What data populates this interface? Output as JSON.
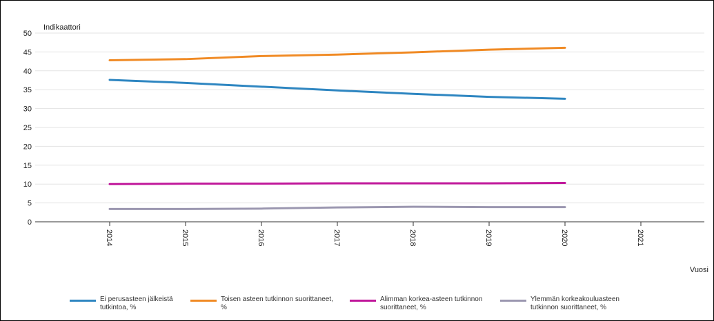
{
  "chart_data": {
    "type": "line",
    "ylabel": "Indikaattori",
    "xlabel": "Vuosi",
    "ylim": [
      0,
      50
    ],
    "y_ticks": [
      "0",
      "5",
      "10",
      "15",
      "20",
      "25",
      "30",
      "35",
      "40",
      "45",
      "50"
    ],
    "x_categories": [
      "2014",
      "2015",
      "2016",
      "2017",
      "2018",
      "2019",
      "2020",
      "2021"
    ],
    "grid": true,
    "legend_position": "bottom",
    "series": [
      {
        "name": "Ei perusasteen jälkeistä\ntutkintoa, %",
        "color": "#2e86c1",
        "values": [
          37.6,
          36.8,
          35.8,
          34.8,
          33.9,
          33.1,
          32.6,
          null
        ]
      },
      {
        "name": "Toisen asteen tutkinnon suorittaneet,\n%",
        "color": "#f08a24",
        "values": [
          42.8,
          43.1,
          43.9,
          44.3,
          44.9,
          45.6,
          46.1,
          null
        ]
      },
      {
        "name": "Alimman korkea-asteen tutkinnon\nsuorittaneet, %",
        "color": "#c0169a",
        "values": [
          10.0,
          10.1,
          10.1,
          10.2,
          10.2,
          10.2,
          10.3,
          null
        ]
      },
      {
        "name": "Ylemmän korkeakouluasteen\ntutkinnon suorittaneet, %",
        "color": "#9b97b0",
        "values": [
          3.4,
          3.4,
          3.5,
          3.8,
          4.0,
          3.9,
          3.9,
          null
        ]
      }
    ]
  }
}
